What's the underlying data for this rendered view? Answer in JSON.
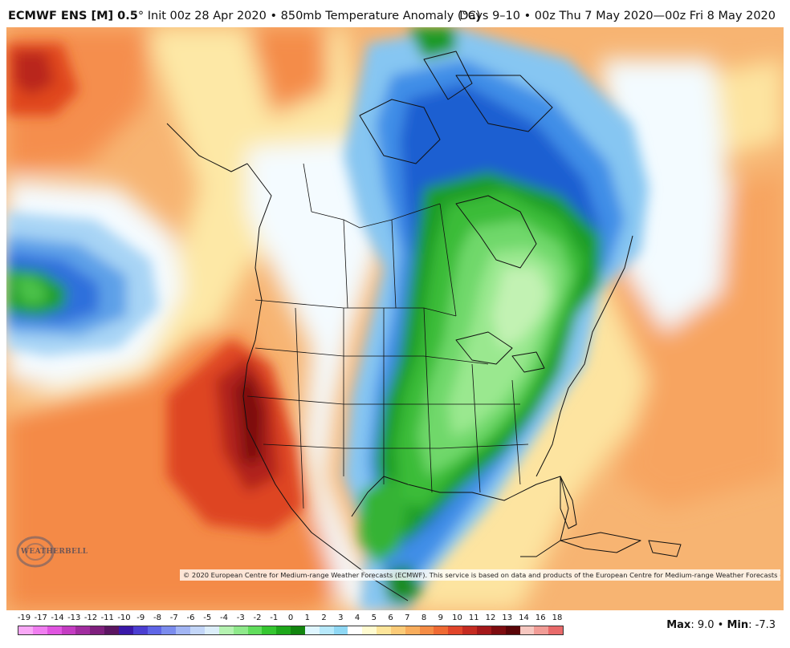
{
  "header": {
    "model": "ECMWF ENS [M] 0.5",
    "degree": "°",
    "init": " Init 00z 28 Apr 2020 • 850mb Temperature Anomaly (°C)",
    "valid": "Days 9–10 • 00z Thu 7 May 2020—00z Fri 8 May 2020"
  },
  "credit": "© 2020 European Centre for Medium-range Weather Forecasts (ECMWF). This service is based on data and products of the European Centre for Medium-range Weather Forecasts (ECMWF).",
  "logo": {
    "text": "WEATHERBELL"
  },
  "legend": {
    "labels": [
      "-19",
      "-17",
      "-14",
      "-13",
      "-12",
      "-11",
      "-10",
      "-9",
      "-8",
      "-7",
      "-6",
      "-5",
      "-4",
      "-3",
      "-2",
      "-1",
      "0",
      "1",
      "2",
      "3",
      "4",
      "5",
      "6",
      "7",
      "8",
      "9",
      "10",
      "11",
      "12",
      "13",
      "14",
      "16",
      "18"
    ],
    "colors": [
      "#f9a8f6",
      "#f07ef0",
      "#e055e0",
      "#c43cc2",
      "#a12c9f",
      "#7f1f7d",
      "#5b1561",
      "#3a18a8",
      "#4b3ed1",
      "#5f65e6",
      "#7b8cee",
      "#a2b5f4",
      "#c3d6f8",
      "#dceefa",
      "#b5f2b1",
      "#8fe98b",
      "#61dd5c",
      "#35c630",
      "#1ea71a",
      "#12850f",
      "#dff6ff",
      "#b7e9fb",
      "#8fd8f4",
      "#ffffff",
      "#fffbd0",
      "#fde59a",
      "#fbcb78",
      "#f8ad5c",
      "#f58c45",
      "#ef6a33",
      "#e1452a",
      "#c52b21",
      "#a4181a",
      "#7e0c10",
      "#5a0508",
      "#f6c7c0",
      "#f19c96",
      "#e86a6a"
    ]
  },
  "stats": {
    "max_label": "Max",
    "max_value": ": 9.0 • ",
    "min_label": "Min",
    "min_value": ": -7.3"
  }
}
